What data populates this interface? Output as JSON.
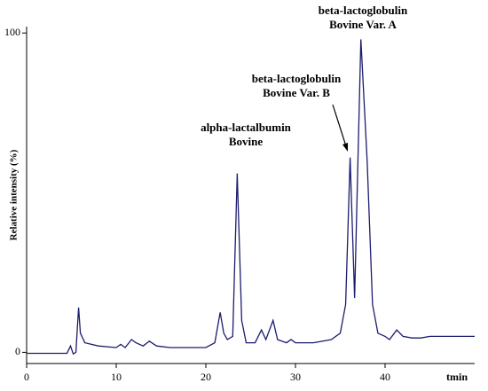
{
  "chart_data": {
    "type": "line",
    "y_label": "Relative intensity (%)",
    "x_label": "tmin",
    "annotations": [
      [
        "alpha-lactalbumin",
        "Bovine"
      ],
      [
        "beta-lactoglobulin",
        "Bovine Var. B"
      ],
      [
        "beta-lactoglobulin",
        "Bovine Var. A"
      ]
    ],
    "x": [
      0,
      4.5,
      4.9,
      5.2,
      5.5,
      5.8,
      6.0,
      6.5,
      8,
      10,
      10.5,
      11,
      11.7,
      12.2,
      13,
      13.7,
      14.5,
      16,
      18,
      20,
      21,
      21.6,
      22,
      22.4,
      23,
      23.5,
      24.0,
      24.5,
      25.5,
      26.2,
      26.7,
      27.5,
      28,
      29,
      29.5,
      30,
      32,
      34,
      35,
      35.6,
      36.1,
      36.6,
      37.3,
      38,
      38.6,
      39.2,
      40,
      40.5,
      41.3,
      42,
      43,
      44,
      45,
      50
    ],
    "series": [
      {
        "color": "#1c1c6e",
        "values": [
          -0.3,
          -0.3,
          2,
          -0.5,
          0,
          14,
          6,
          3,
          2,
          1.5,
          2.5,
          1.5,
          4,
          3,
          2,
          3.5,
          2,
          1.5,
          1.5,
          1.5,
          3,
          12.5,
          6,
          4,
          5,
          56,
          10,
          3,
          3,
          7,
          4,
          10,
          4,
          3,
          4,
          3,
          3,
          4,
          6,
          15,
          61,
          17,
          98,
          60,
          15,
          6,
          5,
          4,
          7,
          5,
          4.5,
          4.5,
          5,
          5
        ]
      }
    ],
    "xlim": [
      0,
      50
    ],
    "xticks": [
      0,
      10,
      20,
      30,
      40
    ],
    "ylim": [
      -3.5,
      102
    ],
    "yticks": [
      0,
      100
    ]
  }
}
